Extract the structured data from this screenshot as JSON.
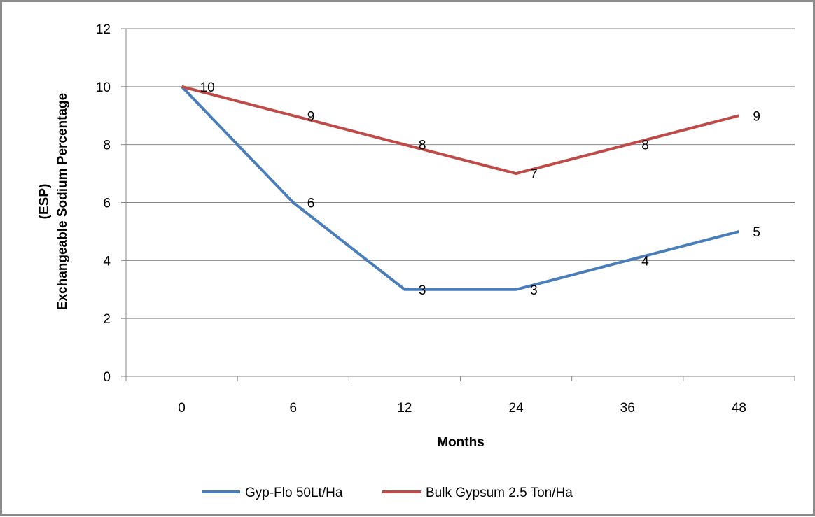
{
  "chart_data": {
    "type": "line",
    "categories": [
      "0",
      "6",
      "12",
      "24",
      "36",
      "48"
    ],
    "series": [
      {
        "name": "Gyp-Flo 50Lt/Ha",
        "values": [
          10,
          6,
          3,
          3,
          4,
          5
        ],
        "color": "#4a7ebb",
        "labels": [
          "10",
          "6",
          "3",
          "3",
          "4",
          "5"
        ]
      },
      {
        "name": "Bulk Gypsum 2.5 Ton/Ha",
        "values": [
          10,
          9,
          8,
          7,
          8,
          9
        ],
        "color": "#be4b48",
        "labels": [
          "10",
          "9",
          "8",
          "7",
          "8",
          "9"
        ]
      }
    ],
    "xlabel": "Months",
    "ylabel_line1": "(ESP)",
    "ylabel_line2": "Exchangeable Sodium Percentage",
    "ylim": [
      0,
      12
    ],
    "yticks": [
      "0",
      "2",
      "4",
      "6",
      "8",
      "10",
      "12"
    ],
    "grid": true,
    "legend_position": "bottom"
  }
}
